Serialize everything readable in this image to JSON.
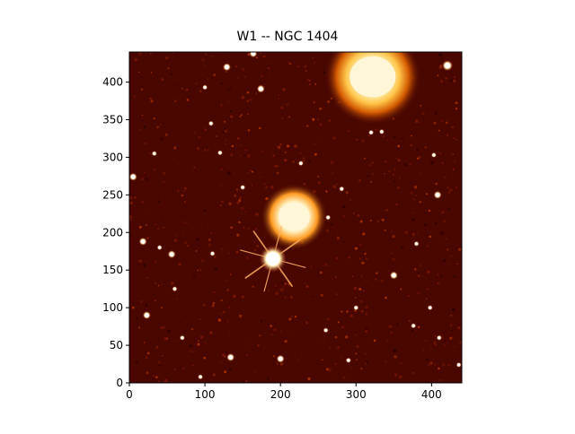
{
  "figure": {
    "title": "W1 -- NGC 1404",
    "x_ticks": [
      "0",
      "100",
      "200",
      "300",
      "400"
    ],
    "y_ticks": [
      "0",
      "50",
      "100",
      "150",
      "200",
      "250",
      "300",
      "350",
      "400"
    ],
    "x_range": [
      0,
      440
    ],
    "y_range": [
      0,
      440
    ],
    "colormap": "afmhot",
    "colors": {
      "background": "#2a0200",
      "sky": "#4a0700",
      "bright": "#fff6d8"
    },
    "sources": [
      {
        "kind": "galaxy",
        "x": 322,
        "y": 407,
        "r": 32
      },
      {
        "kind": "galaxy",
        "x": 218,
        "y": 221,
        "r": 22
      },
      {
        "kind": "star",
        "x": 190,
        "y": 165,
        "r": 10
      },
      {
        "kind": "point",
        "x": 164,
        "y": 438,
        "r": 3
      },
      {
        "kind": "point",
        "x": 129,
        "y": 420,
        "r": 3
      },
      {
        "kind": "point",
        "x": 174,
        "y": 391,
        "r": 3
      },
      {
        "kind": "point",
        "x": 100,
        "y": 393,
        "r": 2
      },
      {
        "kind": "point",
        "x": 421,
        "y": 422,
        "r": 4
      },
      {
        "kind": "point",
        "x": 108,
        "y": 345,
        "r": 2
      },
      {
        "kind": "point",
        "x": 320,
        "y": 333,
        "r": 2
      },
      {
        "kind": "point",
        "x": 334,
        "y": 334,
        "r": 2
      },
      {
        "kind": "point",
        "x": 5,
        "y": 274,
        "r": 3
      },
      {
        "kind": "point",
        "x": 33,
        "y": 305,
        "r": 2
      },
      {
        "kind": "point",
        "x": 120,
        "y": 306,
        "r": 2
      },
      {
        "kind": "point",
        "x": 227,
        "y": 292,
        "r": 2
      },
      {
        "kind": "point",
        "x": 403,
        "y": 303,
        "r": 2
      },
      {
        "kind": "point",
        "x": 408,
        "y": 250,
        "r": 3
      },
      {
        "kind": "point",
        "x": 281,
        "y": 258,
        "r": 2
      },
      {
        "kind": "point",
        "x": 263,
        "y": 220,
        "r": 2
      },
      {
        "kind": "point",
        "x": 18,
        "y": 188,
        "r": 3
      },
      {
        "kind": "point",
        "x": 56,
        "y": 171,
        "r": 3
      },
      {
        "kind": "point",
        "x": 110,
        "y": 172,
        "r": 2
      },
      {
        "kind": "point",
        "x": 350,
        "y": 143,
        "r": 3
      },
      {
        "kind": "point",
        "x": 23,
        "y": 90,
        "r": 3
      },
      {
        "kind": "point",
        "x": 60,
        "y": 125,
        "r": 2
      },
      {
        "kind": "point",
        "x": 300,
        "y": 100,
        "r": 2
      },
      {
        "kind": "point",
        "x": 134,
        "y": 34,
        "r": 3
      },
      {
        "kind": "point",
        "x": 200,
        "y": 32,
        "r": 3
      },
      {
        "kind": "point",
        "x": 290,
        "y": 30,
        "r": 2
      },
      {
        "kind": "point",
        "x": 94,
        "y": 8,
        "r": 2
      },
      {
        "kind": "point",
        "x": 398,
        "y": 100,
        "r": 2
      },
      {
        "kind": "point",
        "x": 436,
        "y": 24,
        "r": 2
      },
      {
        "kind": "point",
        "x": 376,
        "y": 76,
        "r": 2
      },
      {
        "kind": "point",
        "x": 70,
        "y": 60,
        "r": 2
      },
      {
        "kind": "point",
        "x": 40,
        "y": 180,
        "r": 2
      },
      {
        "kind": "point",
        "x": 380,
        "y": 185,
        "r": 2
      },
      {
        "kind": "point",
        "x": 150,
        "y": 260,
        "r": 2
      },
      {
        "kind": "point",
        "x": 410,
        "y": 60,
        "r": 2
      },
      {
        "kind": "point",
        "x": 260,
        "y": 70,
        "r": 2
      }
    ]
  }
}
